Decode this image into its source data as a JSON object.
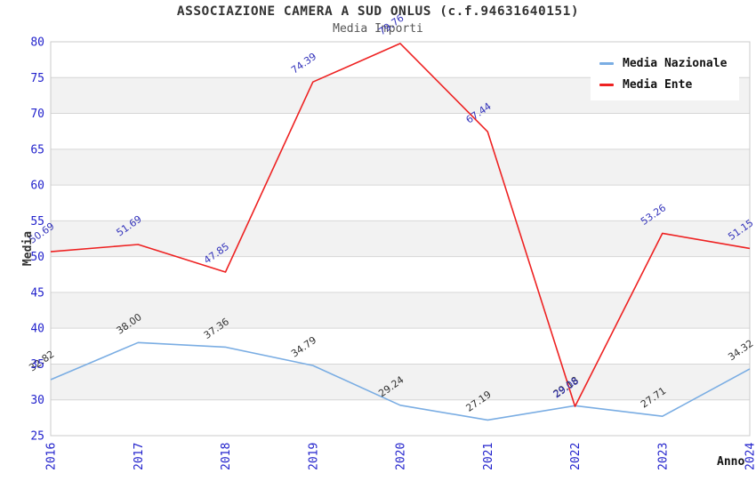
{
  "header": {
    "title": "ASSOCIAZIONE CAMERA A SUD ONLUS (c.f.94631640151)",
    "subtitle": "Media Importi"
  },
  "axes": {
    "x_title": "Anno",
    "y_title": "Media"
  },
  "legend": {
    "position": "top-right",
    "items": [
      {
        "label": "Media Nazionale",
        "color": "#7aade3"
      },
      {
        "label": "Media Ente",
        "color": "#ee2222"
      }
    ]
  },
  "chart_data": {
    "type": "line",
    "title": "ASSOCIAZIONE CAMERA A SUD ONLUS (c.f.94631640151)",
    "subtitle": "Media Importi",
    "xlabel": "Anno",
    "ylabel": "Media",
    "x": [
      2016,
      2017,
      2018,
      2019,
      2020,
      2021,
      2022,
      2023,
      2024
    ],
    "x_tick_labels": [
      "2016",
      "2017",
      "2018",
      "2019",
      "2020",
      "2021",
      "2022",
      "2023",
      "2024"
    ],
    "series": [
      {
        "name": "Media Nazionale",
        "color": "#7aade3",
        "label_color": "#333333",
        "values": [
          32.82,
          38.0,
          37.36,
          34.79,
          29.24,
          27.19,
          29.18,
          27.71,
          34.32
        ],
        "labels": [
          "32.82",
          "38.00",
          "37.36",
          "34.79",
          "29.24",
          "27.19",
          "29.18",
          "27.71",
          "34.32"
        ]
      },
      {
        "name": "Media Ente",
        "color": "#ee2222",
        "label_color": "#3434bb",
        "values": [
          50.69,
          51.69,
          47.85,
          74.39,
          79.76,
          67.44,
          29.08,
          53.26,
          51.15
        ],
        "labels": [
          "50.69",
          "51.69",
          "47.85",
          "74.39",
          "79.76",
          "67.44",
          "29.08",
          "53.26",
          "51.15"
        ]
      }
    ],
    "ylim": [
      25,
      80
    ],
    "ytick_step": 5,
    "y_tick_labels": [
      "25",
      "30",
      "35",
      "40",
      "45",
      "50",
      "55",
      "60",
      "65",
      "70",
      "75",
      "80"
    ],
    "grid": "horizontal-lines-with-alternating-bands",
    "band_colors": [
      "#ffffff",
      "#f2f2f2"
    ],
    "gridline_color": "#d6d6d6",
    "border_color": "#cbcbcb",
    "tick_label_color": "#2222cc",
    "legend_position": "top-right"
  }
}
